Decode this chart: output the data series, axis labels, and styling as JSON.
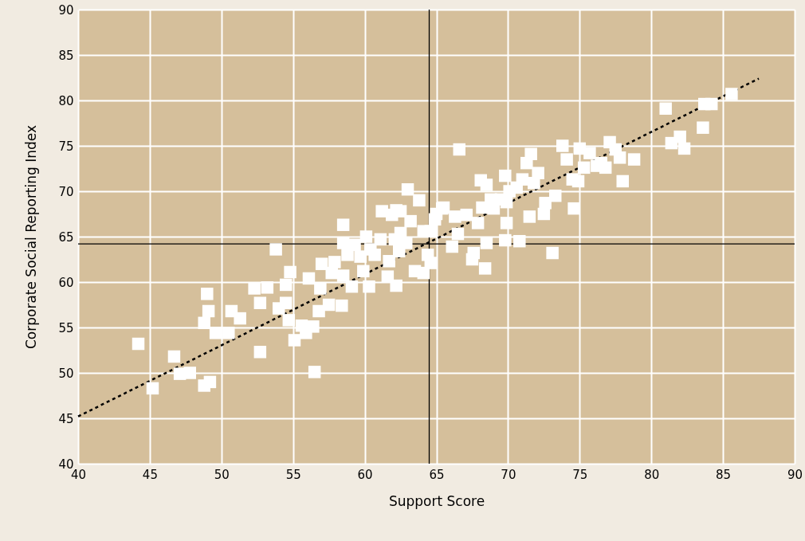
{
  "chart_data": {
    "type": "scatter",
    "xlabel": "Support Score",
    "ylabel": "Corporate Social Reporting Index",
    "xlim": [
      40,
      90
    ],
    "xticks": [
      40,
      45,
      50,
      55,
      60,
      65,
      70,
      75,
      80,
      85,
      90
    ],
    "ylim": [
      40,
      90
    ],
    "yticks": [
      40,
      45,
      50,
      55,
      60,
      65,
      70,
      75,
      80,
      85,
      90
    ],
    "grid": true,
    "marker": "square",
    "ref_lines": [
      {
        "axis": "x",
        "value": 64.5,
        "label": null,
        "color": "#000000"
      },
      {
        "axis": "y",
        "value": 64.2,
        "label": null,
        "color": "#000000"
      }
    ],
    "series": [
      {
        "color": "#ffffff",
        "x": [
          44.2,
          45.2,
          46.7,
          47.1,
          47.8,
          48.8,
          49.2,
          49.0,
          49.1,
          48.8,
          49.6,
          50.7,
          50.5,
          51.3,
          52.3,
          52.7,
          53.2,
          52.7,
          53.8,
          54.0,
          54.5,
          54.5,
          54.8,
          54.7,
          55.1,
          55.6,
          55.9,
          56.4,
          56.1,
          56.5,
          56.9,
          56.8,
          57.0,
          57.5,
          57.7,
          57.9,
          58.4,
          58.5,
          58.5,
          58.5,
          58.8,
          59.1,
          59.3,
          59.7,
          59.9,
          60.1,
          60.3,
          60.4,
          60.7,
          61.1,
          61.2,
          61.6,
          61.7,
          61.9,
          62.1,
          62.2,
          62.5,
          62.4,
          62.2,
          62.5,
          62.9,
          63.0,
          63.2,
          63.5,
          63.8,
          64.1,
          64.1,
          64.4,
          64.6,
          64.6,
          64.9,
          65.0,
          65.4,
          65.5,
          66.1,
          66.3,
          66.5,
          66.6,
          67.1,
          67.5,
          67.6,
          67.9,
          68.1,
          68.2,
          68.5,
          68.5,
          68.4,
          68.8,
          69.0,
          69.5,
          69.8,
          69.8,
          69.9,
          69.9,
          70.1,
          70.6,
          70.8,
          71.0,
          71.3,
          71.5,
          71.6,
          71.8,
          72.1,
          72.5,
          72.6,
          73.1,
          73.3,
          73.8,
          74.1,
          74.5,
          74.6,
          74.9,
          75.0,
          75.3,
          75.7,
          76.2,
          76.5,
          76.8,
          77.1,
          77.5,
          77.8,
          78.0,
          78.8,
          81.0,
          81.4,
          82.0,
          82.3,
          83.6,
          83.7,
          84.2,
          85.6
        ],
        "values": [
          53.2,
          48.3,
          51.8,
          49.9,
          50.0,
          48.6,
          49.0,
          58.7,
          56.8,
          55.5,
          54.4,
          56.8,
          54.4,
          56.0,
          59.3,
          57.7,
          59.4,
          52.3,
          63.6,
          57.1,
          57.7,
          59.7,
          61.1,
          55.8,
          53.6,
          55.2,
          54.4,
          55.1,
          60.4,
          50.1,
          59.3,
          56.8,
          62.0,
          57.5,
          61.0,
          62.2,
          57.4,
          60.7,
          66.3,
          64.3,
          63.0,
          59.5,
          64.1,
          62.8,
          61.2,
          65.0,
          59.5,
          63.6,
          63.0,
          64.7,
          67.8,
          60.6,
          62.3,
          67.4,
          64.7,
          67.9,
          65.4,
          63.4,
          59.6,
          67.8,
          64.3,
          70.2,
          66.7,
          61.2,
          69.0,
          65.6,
          61.0,
          63.0,
          62.1,
          65.6,
          66.9,
          67.5,
          68.1,
          68.2,
          63.9,
          67.2,
          65.3,
          74.6,
          67.4,
          62.5,
          63.2,
          66.5,
          71.2,
          68.2,
          70.7,
          64.3,
          61.5,
          69.1,
          68.1,
          69.1,
          71.7,
          64.6,
          68.8,
          66.5,
          70.0,
          70.4,
          64.5,
          71.3,
          73.1,
          67.2,
          74.1,
          70.9,
          72.0,
          67.5,
          68.7,
          63.2,
          69.5,
          75.0,
          73.5,
          71.3,
          68.1,
          71.1,
          74.7,
          72.6,
          74.2,
          72.8,
          73.1,
          72.6,
          75.4,
          74.6,
          73.7,
          71.1,
          73.5,
          79.1,
          75.3,
          76.0,
          74.7,
          77.0,
          79.6,
          79.6,
          80.7
        ]
      },
      {
        "type": "line",
        "color": "#000000",
        "line_style": "dashed",
        "marker": "none",
        "x": [
          40,
          87.5
        ],
        "values": [
          45.2,
          82.4
        ]
      }
    ]
  }
}
